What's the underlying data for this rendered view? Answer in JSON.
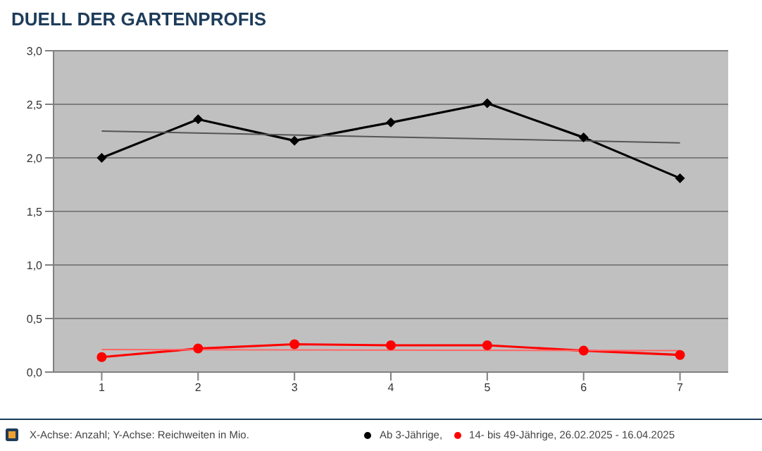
{
  "chart_data": {
    "type": "line",
    "title": "DUELL DER GARTENPROFIS",
    "annotations": [
      "X-Achse: Anzahl; Y-Achse: Reichweiten in Mio."
    ],
    "x": [
      1,
      2,
      3,
      4,
      5,
      6,
      7
    ],
    "xlim": [
      0.5,
      7.5
    ],
    "xticks": [
      1,
      2,
      3,
      4,
      5,
      6,
      7
    ],
    "ylim": [
      0,
      3
    ],
    "yticks": [
      {
        "value": 0,
        "label": "0,0"
      },
      {
        "value": 0.5,
        "label": "0,5"
      },
      {
        "value": 1,
        "label": "1,0"
      },
      {
        "value": 1.5,
        "label": "1,5"
      },
      {
        "value": 2,
        "label": "2,0"
      },
      {
        "value": 2.5,
        "label": "2,5"
      },
      {
        "value": 3,
        "label": "3,0"
      }
    ],
    "grid": "y",
    "legend": "bottom",
    "series": [
      {
        "name": "Ab 3-Jährige,",
        "color": "#000000",
        "marker": "diamond",
        "values": [
          2.0,
          2.36,
          2.16,
          2.33,
          2.51,
          2.19,
          1.81
        ]
      },
      {
        "name": "14- bis 49-Jährige, 26.02.2025 - 16.04.2025",
        "color": "#ff0000",
        "marker": "circle",
        "values": [
          0.14,
          0.22,
          0.26,
          0.25,
          0.25,
          0.2,
          0.16
        ]
      },
      {
        "type": "line",
        "color": "#555555",
        "marker": "none",
        "values": [
          2.25,
          null,
          null,
          null,
          null,
          null,
          2.14
        ]
      },
      {
        "type": "line",
        "color": "#ff6666",
        "marker": "none",
        "values": [
          0.21,
          null,
          null,
          null,
          null,
          null,
          0.2
        ]
      }
    ]
  }
}
